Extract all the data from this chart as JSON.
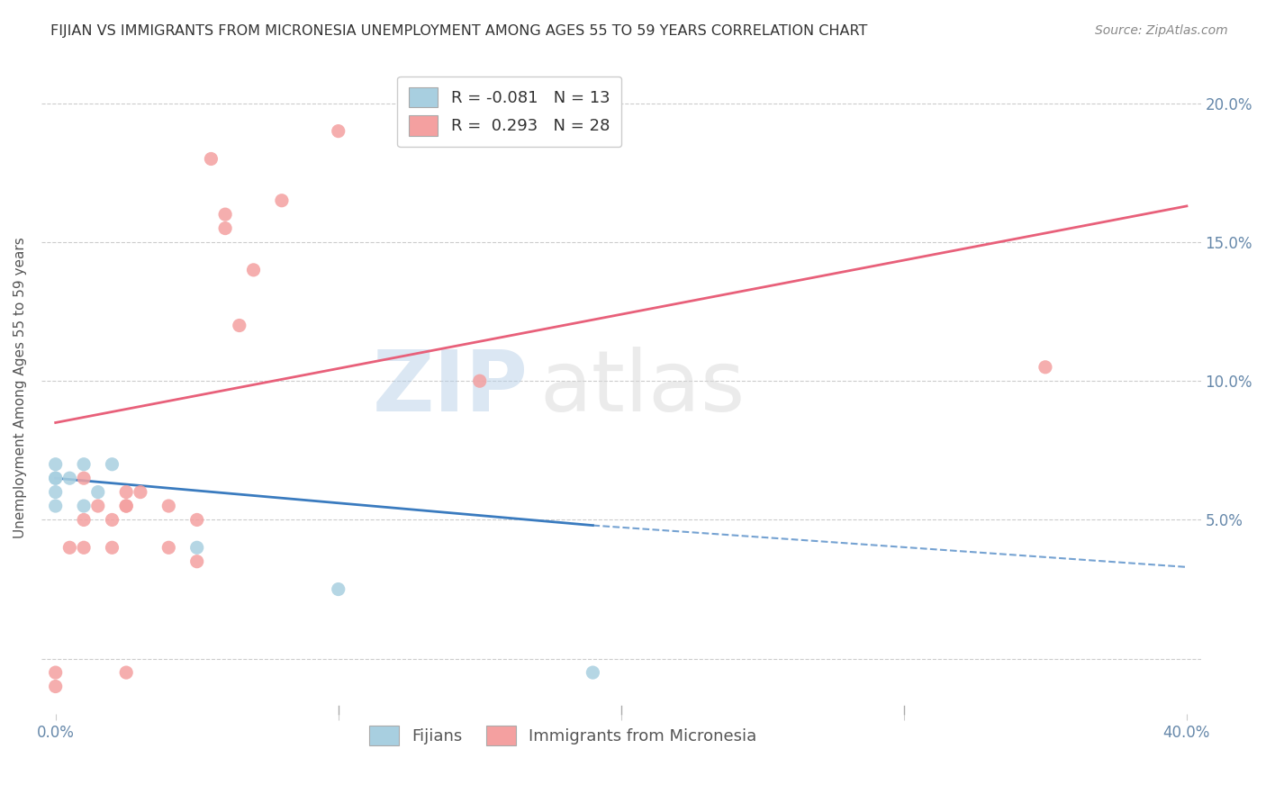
{
  "title": "FIJIAN VS IMMIGRANTS FROM MICRONESIA UNEMPLOYMENT AMONG AGES 55 TO 59 YEARS CORRELATION CHART",
  "source": "Source: ZipAtlas.com",
  "ylabel": "Unemployment Among Ages 55 to 59 years",
  "xlim": [
    -0.005,
    0.405
  ],
  "ylim": [
    -0.02,
    0.215
  ],
  "xticks": [
    0.0,
    0.1,
    0.2,
    0.3,
    0.4
  ],
  "xticklabels": [
    "0.0%",
    "",
    "",
    "",
    "40.0%"
  ],
  "yticks": [
    0.0,
    0.05,
    0.1,
    0.15,
    0.2
  ],
  "yticklabels_right": [
    "",
    "5.0%",
    "10.0%",
    "15.0%",
    "20.0%"
  ],
  "fijian_color": "#a8cfe0",
  "micronesia_color": "#f4a0a0",
  "fijian_R": -0.081,
  "fijian_N": 13,
  "micronesia_R": 0.293,
  "micronesia_N": 28,
  "fijian_line_color": "#3a7bbf",
  "micronesia_line_color": "#e8607a",
  "watermark_zip": "ZIP",
  "watermark_atlas": "atlas",
  "background_color": "#ffffff",
  "grid_color": "#cccccc",
  "fijian_points_x": [
    0.0,
    0.0,
    0.0,
    0.0,
    0.0,
    0.005,
    0.01,
    0.01,
    0.015,
    0.02,
    0.05,
    0.1,
    0.19
  ],
  "fijian_points_y": [
    0.055,
    0.06,
    0.065,
    0.065,
    0.07,
    0.065,
    0.055,
    0.07,
    0.06,
    0.07,
    0.04,
    0.025,
    -0.005
  ],
  "micronesia_points_x": [
    0.0,
    0.0,
    0.005,
    0.01,
    0.01,
    0.01,
    0.015,
    0.02,
    0.02,
    0.025,
    0.025,
    0.025,
    0.025,
    0.03,
    0.04,
    0.04,
    0.05,
    0.05,
    0.055,
    0.06,
    0.06,
    0.065,
    0.07,
    0.08,
    0.1,
    0.15,
    0.19,
    0.35
  ],
  "micronesia_points_y": [
    -0.005,
    -0.01,
    0.04,
    0.04,
    0.05,
    0.065,
    0.055,
    0.04,
    0.05,
    0.06,
    0.055,
    0.055,
    -0.005,
    0.06,
    0.04,
    0.055,
    0.035,
    0.05,
    0.18,
    0.155,
    0.16,
    0.12,
    0.14,
    0.165,
    0.19,
    0.1,
    0.195,
    0.105
  ],
  "micro_line_x0": 0.0,
  "micro_line_y0": 0.085,
  "micro_line_x1": 0.4,
  "micro_line_y1": 0.163,
  "fijian_line_solid_x0": 0.0,
  "fijian_line_solid_y0": 0.065,
  "fijian_line_solid_x1": 0.19,
  "fijian_line_solid_y1": 0.048,
  "fijian_line_dash_x0": 0.19,
  "fijian_line_dash_y0": 0.048,
  "fijian_line_dash_x1": 0.4,
  "fijian_line_dash_y1": 0.033
}
